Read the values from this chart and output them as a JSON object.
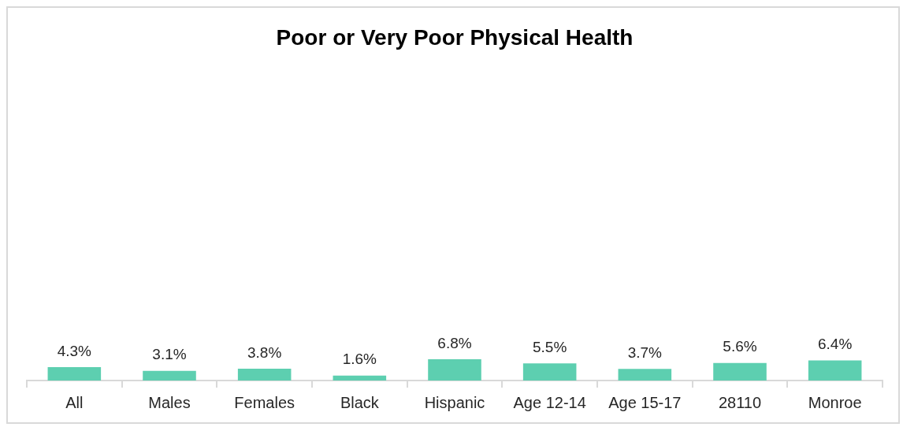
{
  "chart_data": {
    "type": "bar",
    "title": "Poor or Very Poor Physical Health",
    "categories": [
      "All",
      "Males",
      "Females",
      "Black",
      "Hispanic",
      "Age 12-14",
      "Age 15-17",
      "28110",
      "Monroe"
    ],
    "values": [
      4.3,
      3.1,
      3.8,
      1.6,
      6.8,
      5.5,
      3.7,
      5.6,
      6.4
    ],
    "value_labels": [
      "4.3%",
      "3.1%",
      "3.8%",
      "1.6%",
      "6.8%",
      "5.5%",
      "3.7%",
      "5.6%",
      "6.4%"
    ],
    "color": "#5dcfb0",
    "tick_labels": "x",
    "grid": false,
    "legend": false
  }
}
